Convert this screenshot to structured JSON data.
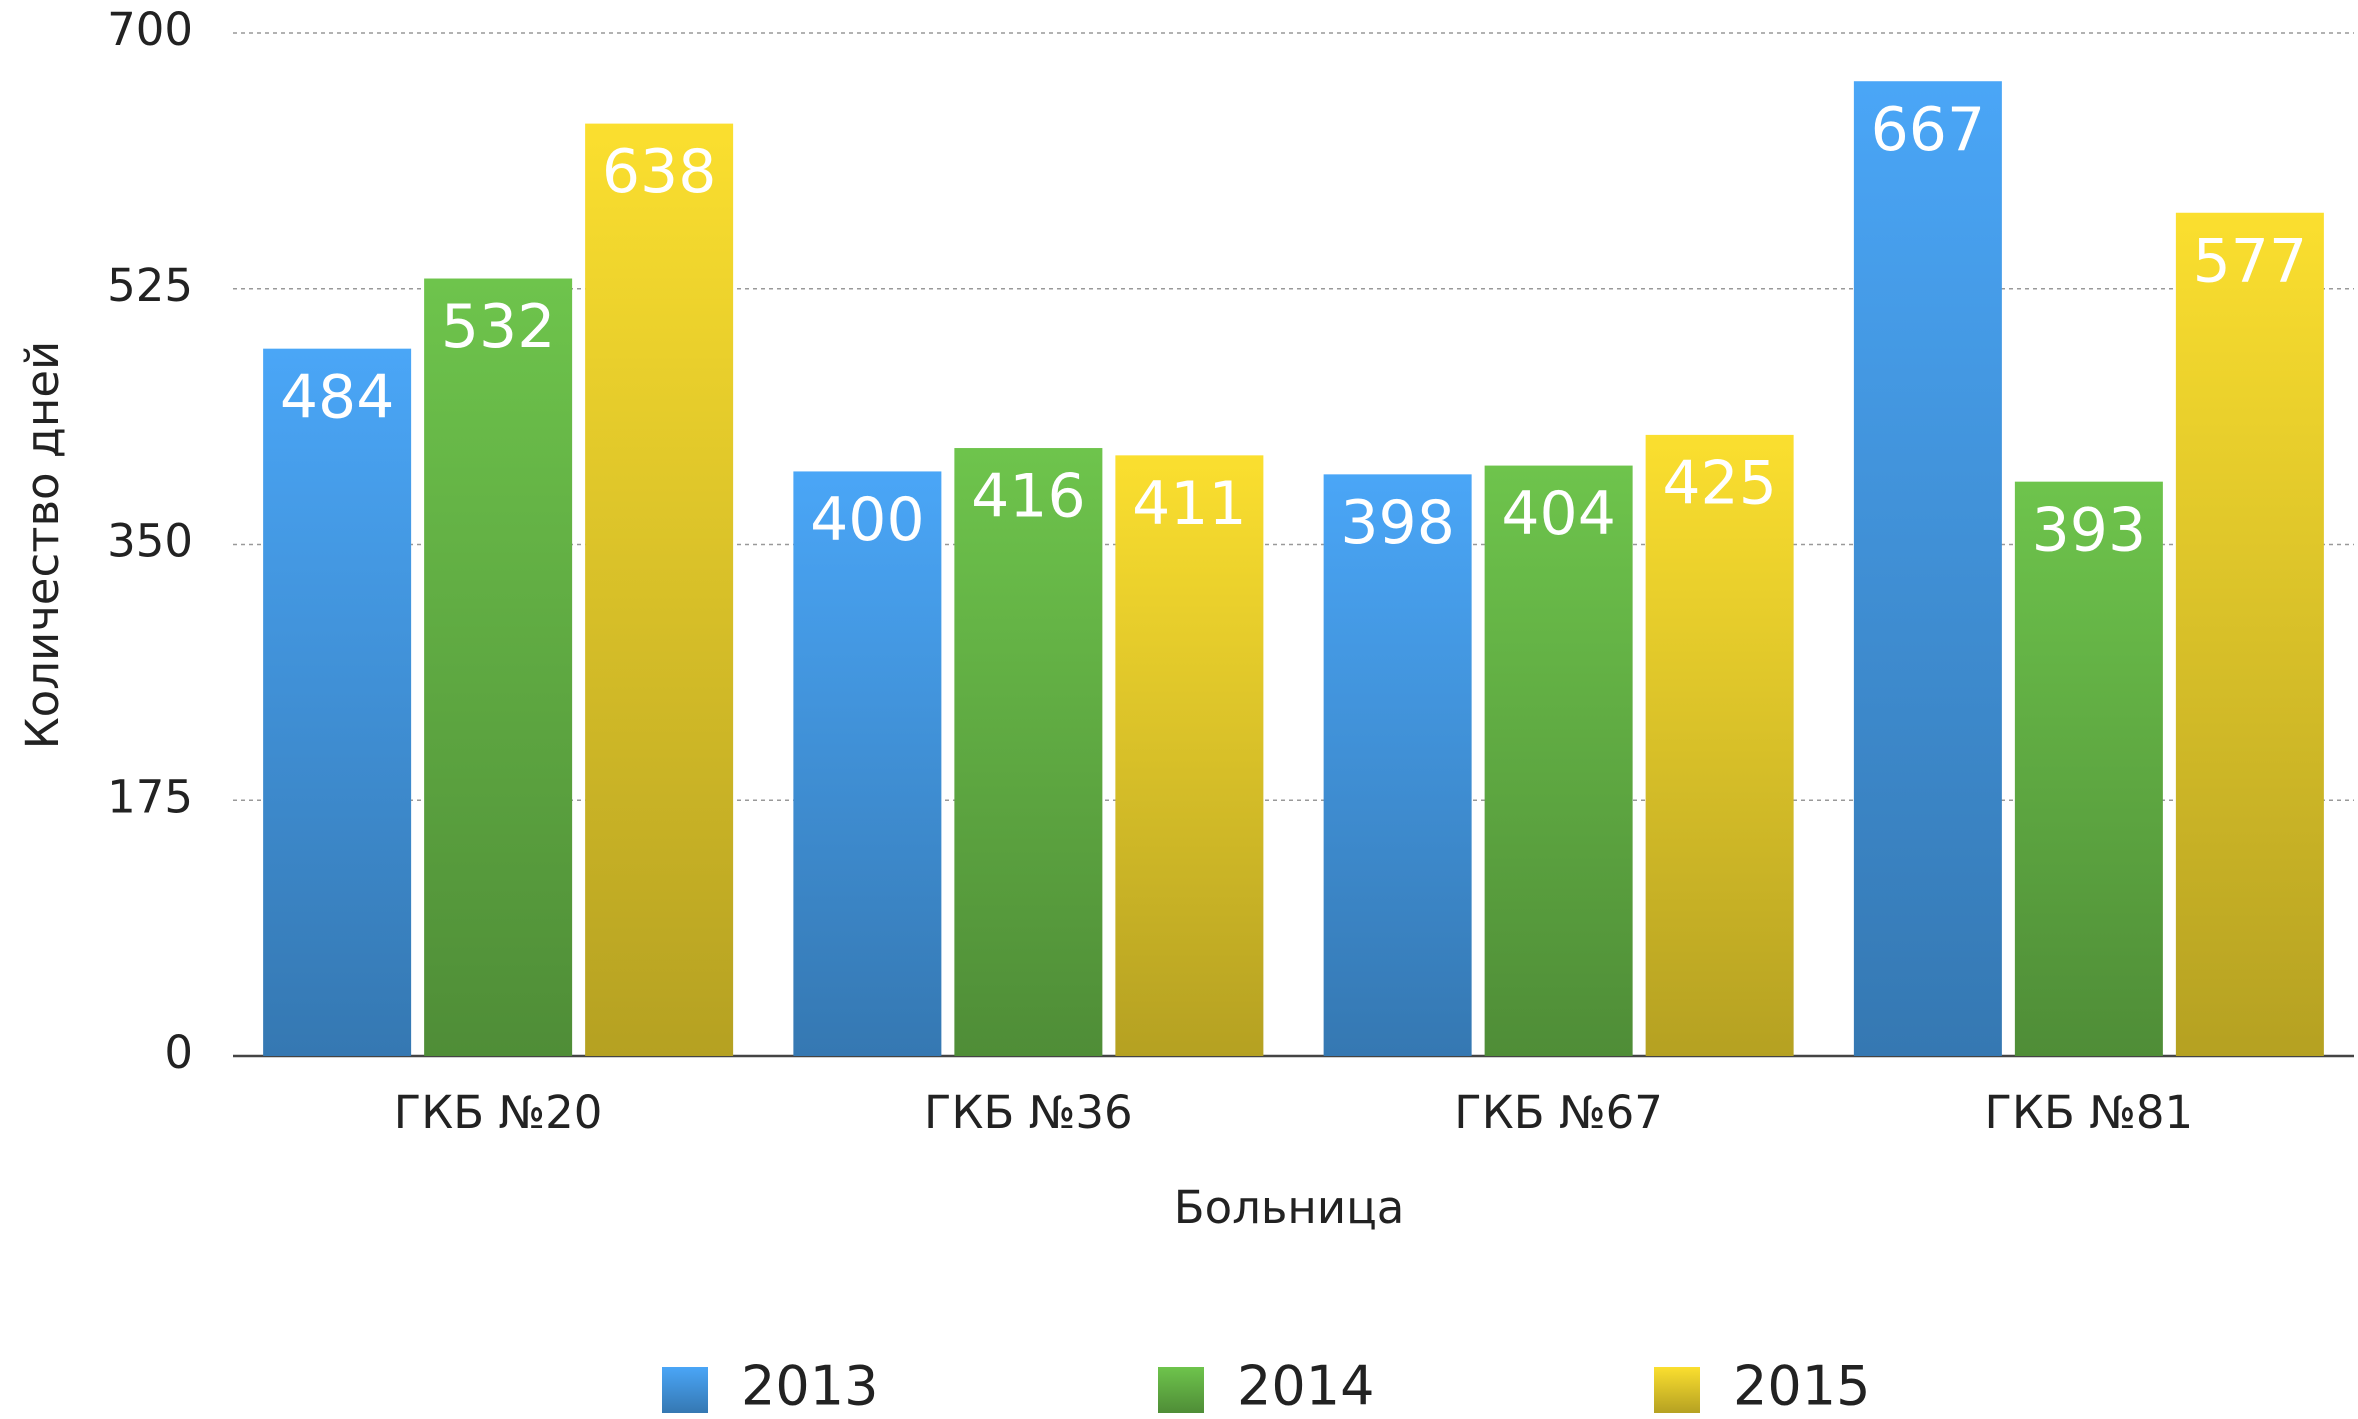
{
  "chart_data": {
    "type": "bar",
    "x_label": "Больница",
    "y_label": "Количество дней",
    "categories": [
      "ГКБ №20",
      "ГКБ №36",
      "ГКБ №67",
      "ГКБ №81"
    ],
    "series": [
      {
        "name": "2013",
        "color": "#4aa6f7",
        "values": [
          484,
          400,
          398,
          667
        ]
      },
      {
        "name": "2014",
        "color": "#6ec44c",
        "values": [
          532,
          416,
          404,
          393
        ]
      },
      {
        "name": "2015",
        "color": "#fbdf2f",
        "values": [
          638,
          411,
          425,
          577
        ]
      }
    ],
    "ylim": [
      0,
      700
    ],
    "yticks": [
      0,
      175,
      350,
      525,
      700
    ],
    "grid": true,
    "legend": "bottom"
  }
}
